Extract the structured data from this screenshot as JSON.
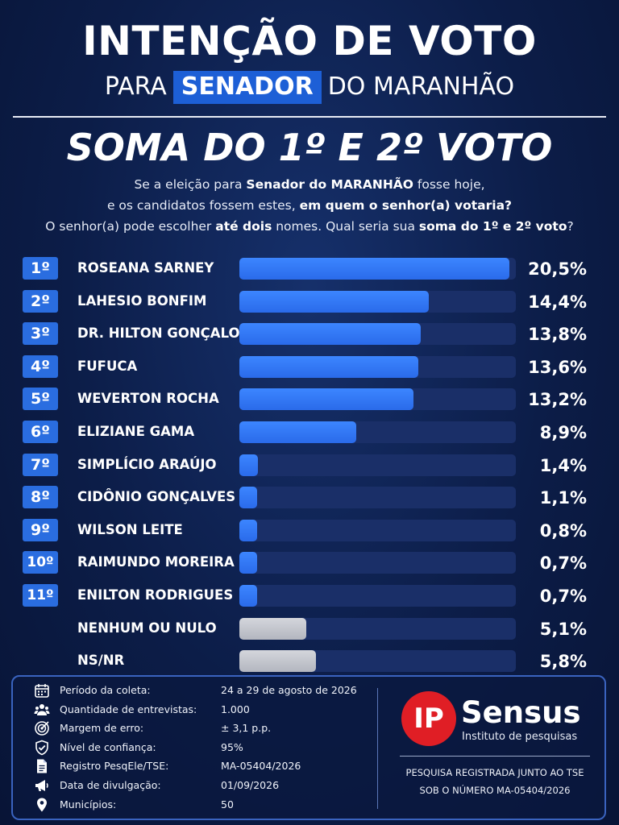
{
  "header": {
    "title": "INTENÇÃO DE VOTO",
    "subtitle_pre": "PARA",
    "subtitle_highlight": "SENADOR",
    "subtitle_post": "DO MARANHÃO",
    "heading": "SOMA DO 1º E 2º VOTO"
  },
  "question": {
    "l1_a": "Se a eleição para ",
    "l1_b": "Senador do MARANHÃO",
    "l1_c": " fosse hoje,",
    "l2_a": "e os candidatos fossem estes, ",
    "l2_b": "em quem o senhor(a) votaria?",
    "l3_a": "O senhor(a) pode escolher ",
    "l3_b": "até dois",
    "l3_c": " nomes. Qual seria sua ",
    "l3_d": "soma do 1º e 2º voto",
    "l3_e": "?"
  },
  "chart_data": {
    "type": "bar",
    "orientation": "horizontal",
    "title": "SOMA DO 1º E 2º VOTO",
    "xlim": [
      0,
      21
    ],
    "colors": {
      "candidate": "#2f77f5",
      "other": "#c4c6cc",
      "track": "#1a2f68"
    },
    "rows": [
      {
        "rank": "1º",
        "name": "ROSEANA SARNEY",
        "value": 20.5,
        "label": "20,5%",
        "kind": "candidate"
      },
      {
        "rank": "2º",
        "name": "LAHESIO BONFIM",
        "value": 14.4,
        "label": "14,4%",
        "kind": "candidate"
      },
      {
        "rank": "3º",
        "name": "DR. HILTON GONÇALO",
        "value": 13.8,
        "label": "13,8%",
        "kind": "candidate"
      },
      {
        "rank": "4º",
        "name": "FUFUCA",
        "value": 13.6,
        "label": "13,6%",
        "kind": "candidate"
      },
      {
        "rank": "5º",
        "name": "WEVERTON ROCHA",
        "value": 13.2,
        "label": "13,2%",
        "kind": "candidate"
      },
      {
        "rank": "6º",
        "name": "ELIZIANE GAMA",
        "value": 8.9,
        "label": "8,9%",
        "kind": "candidate"
      },
      {
        "rank": "7º",
        "name": "SIMPLÍCIO ARAÚJO",
        "value": 1.4,
        "label": "1,4%",
        "kind": "candidate"
      },
      {
        "rank": "8º",
        "name": "CIDÔNIO GONÇALVES",
        "value": 1.1,
        "label": "1,1%",
        "kind": "candidate"
      },
      {
        "rank": "9º",
        "name": "WILSON LEITE",
        "value": 0.8,
        "label": "0,8%",
        "kind": "candidate"
      },
      {
        "rank": "10º",
        "name": "RAIMUNDO MOREIRA",
        "value": 0.7,
        "label": "0,7%",
        "kind": "candidate"
      },
      {
        "rank": "11º",
        "name": "ENILTON RODRIGUES",
        "value": 0.7,
        "label": "0,7%",
        "kind": "candidate"
      },
      {
        "rank": "",
        "name": "NENHUM OU NULO",
        "value": 5.1,
        "label": "5,1%",
        "kind": "other"
      },
      {
        "rank": "",
        "name": "NS/NR",
        "value": 5.8,
        "label": "5,8%",
        "kind": "other"
      }
    ]
  },
  "info": {
    "items": [
      {
        "icon": "calendar-icon",
        "label": "Período da coleta:",
        "value": "24 a 29 de agosto de 2026"
      },
      {
        "icon": "people-icon",
        "label": "Quantidade de entrevistas:",
        "value": "1.000"
      },
      {
        "icon": "target-icon",
        "label": "Margem de erro:",
        "value": "± 3,1 p.p."
      },
      {
        "icon": "shield-check-icon",
        "label": "Nível de confiança:",
        "value": "95%"
      },
      {
        "icon": "document-icon",
        "label": "Registro PesqEle/TSE:",
        "value": "MA-05404/2026"
      },
      {
        "icon": "megaphone-icon",
        "label": "Data de divulgação:",
        "value": "01/09/2026"
      },
      {
        "icon": "map-pin-icon",
        "label": "Municípios:",
        "value": "50"
      }
    ],
    "logo": {
      "mark": "IP",
      "name": "Sensus",
      "tagline": "Instituto de pesquisas",
      "brand_color": "#e01e25"
    },
    "registration_l1": "PESQUISA REGISTRADA JUNTO AO TSE",
    "registration_l2": "SOB O NÚMERO MA-05404/2026"
  }
}
